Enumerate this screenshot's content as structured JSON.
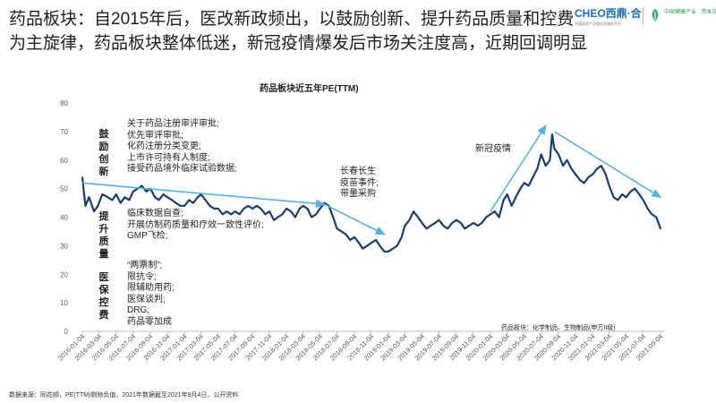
{
  "slide": {
    "title": "药品板块：自2015年后，医改新政频出，以鼓励创新、提升药品质量和控费为主旋律，药品板块整体低迷，新冠疫情爆发后市场关注度高，近期回调明显"
  },
  "logos": {
    "primary": "CHEO西鼎·合",
    "primary_sub": "中国医药产业链信息服务平台",
    "secondary": "中国健康产业 · 资本论坛"
  },
  "chart_data": {
    "type": "line",
    "title": "药品板块近五年PE(TTM)",
    "xlabel": "",
    "ylabel": "",
    "ylim": [
      0,
      80
    ],
    "yticks": [
      0,
      10,
      20,
      30,
      40,
      50,
      60,
      70,
      80
    ],
    "grid": false,
    "x_tick_labels": [
      "2016-01-04",
      "2016-03-04",
      "2016-05-04",
      "2016-07-04",
      "2016-09-04",
      "2016-11-04",
      "2017-01-04",
      "2017-03-04",
      "2017-05-04",
      "2017-07-04",
      "2017-09-04",
      "2017-11-04",
      "2018-01-04",
      "2018-03-04",
      "2018-05-04",
      "2018-07-04",
      "2018-09-04",
      "2018-11-04",
      "2019-01-04",
      "2019-03-04",
      "2019-05-04",
      "2019-07-04",
      "2019-09-04",
      "2019-11-04",
      "2020-01-04",
      "2020-03-04",
      "2020-05-04",
      "2020-07-04",
      "2020-09-04",
      "2020-11-04",
      "2021-01-04",
      "2021-03-04",
      "2021-05-04",
      "2021-07-04",
      "2021-09-04"
    ],
    "series": [
      {
        "color": "#1c3d66",
        "points": [
          [
            "2016-01-04",
            54
          ],
          [
            "2016-01-15",
            44
          ],
          [
            "2016-01-28",
            47
          ],
          [
            "2016-02-15",
            42
          ],
          [
            "2016-02-29",
            44
          ],
          [
            "2016-03-15",
            48
          ],
          [
            "2016-04-04",
            47
          ],
          [
            "2016-04-20",
            46
          ],
          [
            "2016-05-04",
            48
          ],
          [
            "2016-05-20",
            45
          ],
          [
            "2016-06-04",
            47
          ],
          [
            "2016-06-20",
            46
          ],
          [
            "2016-07-04",
            49
          ],
          [
            "2016-07-20",
            50
          ],
          [
            "2016-08-04",
            51
          ],
          [
            "2016-08-20",
            49
          ],
          [
            "2016-09-04",
            50
          ],
          [
            "2016-09-20",
            47
          ],
          [
            "2016-10-04",
            46
          ],
          [
            "2016-10-20",
            48
          ],
          [
            "2016-11-04",
            47
          ],
          [
            "2016-11-20",
            46
          ],
          [
            "2016-12-04",
            45
          ],
          [
            "2016-12-20",
            44
          ],
          [
            "2017-01-04",
            44
          ],
          [
            "2017-01-20",
            46
          ],
          [
            "2017-02-04",
            45
          ],
          [
            "2017-02-20",
            47
          ],
          [
            "2017-03-04",
            48
          ],
          [
            "2017-03-20",
            46
          ],
          [
            "2017-04-04",
            44
          ],
          [
            "2017-04-20",
            43
          ],
          [
            "2017-05-04",
            43
          ],
          [
            "2017-05-20",
            41
          ],
          [
            "2017-06-04",
            42
          ],
          [
            "2017-06-20",
            41
          ],
          [
            "2017-07-04",
            42
          ],
          [
            "2017-07-20",
            41
          ],
          [
            "2017-08-04",
            43
          ],
          [
            "2017-08-20",
            44
          ],
          [
            "2017-09-04",
            43
          ],
          [
            "2017-09-20",
            44
          ],
          [
            "2017-10-04",
            43
          ],
          [
            "2017-10-20",
            41
          ],
          [
            "2017-11-04",
            42
          ],
          [
            "2017-11-20",
            39
          ],
          [
            "2017-12-04",
            40
          ],
          [
            "2017-12-20",
            41
          ],
          [
            "2018-01-04",
            43
          ],
          [
            "2018-01-20",
            42
          ],
          [
            "2018-02-04",
            40
          ],
          [
            "2018-02-20",
            43
          ],
          [
            "2018-03-04",
            44
          ],
          [
            "2018-03-20",
            43
          ],
          [
            "2018-04-04",
            40
          ],
          [
            "2018-04-20",
            41
          ],
          [
            "2018-05-04",
            43
          ],
          [
            "2018-05-20",
            45
          ],
          [
            "2018-06-04",
            44
          ],
          [
            "2018-06-20",
            40
          ],
          [
            "2018-07-04",
            36
          ],
          [
            "2018-07-20",
            35
          ],
          [
            "2018-08-04",
            34
          ],
          [
            "2018-08-20",
            32
          ],
          [
            "2018-09-04",
            33
          ],
          [
            "2018-09-20",
            31
          ],
          [
            "2018-10-04",
            29
          ],
          [
            "2018-10-20",
            30
          ],
          [
            "2018-11-04",
            31
          ],
          [
            "2018-11-20",
            32
          ],
          [
            "2018-12-04",
            30
          ],
          [
            "2018-12-20",
            28
          ],
          [
            "2019-01-04",
            28
          ],
          [
            "2019-01-20",
            29
          ],
          [
            "2019-02-04",
            30
          ],
          [
            "2019-02-20",
            33
          ],
          [
            "2019-03-04",
            37
          ],
          [
            "2019-03-20",
            39
          ],
          [
            "2019-04-04",
            42
          ],
          [
            "2019-04-20",
            40
          ],
          [
            "2019-05-04",
            38
          ],
          [
            "2019-05-20",
            36
          ],
          [
            "2019-06-04",
            37
          ],
          [
            "2019-06-20",
            38
          ],
          [
            "2019-07-04",
            39
          ],
          [
            "2019-07-20",
            37
          ],
          [
            "2019-08-04",
            36
          ],
          [
            "2019-08-20",
            38
          ],
          [
            "2019-09-04",
            39
          ],
          [
            "2019-09-20",
            38
          ],
          [
            "2019-10-04",
            36
          ],
          [
            "2019-10-20",
            37
          ],
          [
            "2019-11-04",
            38
          ],
          [
            "2019-11-20",
            37
          ],
          [
            "2019-12-04",
            38
          ],
          [
            "2019-12-20",
            40
          ],
          [
            "2020-01-04",
            41
          ],
          [
            "2020-01-20",
            42
          ],
          [
            "2020-02-04",
            40
          ],
          [
            "2020-02-20",
            46
          ],
          [
            "2020-03-04",
            48
          ],
          [
            "2020-03-20",
            44
          ],
          [
            "2020-04-04",
            47
          ],
          [
            "2020-04-20",
            50
          ],
          [
            "2020-05-04",
            52
          ],
          [
            "2020-05-20",
            51
          ],
          [
            "2020-06-04",
            54
          ],
          [
            "2020-06-20",
            57
          ],
          [
            "2020-07-04",
            62
          ],
          [
            "2020-07-20",
            58
          ],
          [
            "2020-08-04",
            60
          ],
          [
            "2020-08-12",
            69
          ],
          [
            "2020-08-20",
            64
          ],
          [
            "2020-09-04",
            62
          ],
          [
            "2020-09-20",
            58
          ],
          [
            "2020-10-04",
            60
          ],
          [
            "2020-10-20",
            57
          ],
          [
            "2020-11-04",
            55
          ],
          [
            "2020-11-20",
            53
          ],
          [
            "2020-12-04",
            52
          ],
          [
            "2020-12-20",
            54
          ],
          [
            "2021-01-04",
            55
          ],
          [
            "2021-01-20",
            57
          ],
          [
            "2021-02-04",
            58
          ],
          [
            "2021-02-20",
            55
          ],
          [
            "2021-03-04",
            51
          ],
          [
            "2021-03-20",
            47
          ],
          [
            "2021-04-04",
            46
          ],
          [
            "2021-04-20",
            48
          ],
          [
            "2021-05-04",
            47
          ],
          [
            "2021-05-20",
            49
          ],
          [
            "2021-06-04",
            50
          ],
          [
            "2021-06-20",
            48
          ],
          [
            "2021-07-04",
            46
          ],
          [
            "2021-07-20",
            43
          ],
          [
            "2021-08-04",
            41
          ],
          [
            "2021-08-20",
            40
          ],
          [
            "2021-09-04",
            36
          ]
        ]
      }
    ],
    "trend_arrows": [
      {
        "from": [
          "2016-01-04",
          52
        ],
        "to": [
          "2018-05-20",
          44.5
        ]
      },
      {
        "from": [
          "2018-05-20",
          44.5
        ],
        "to": [
          "2018-12-20",
          34
        ]
      },
      {
        "from": [
          "2020-01-04",
          42
        ],
        "to": [
          "2020-07-20",
          72
        ]
      },
      {
        "from": [
          "2020-08-20",
          70
        ],
        "to": [
          "2021-09-04",
          47
        ]
      }
    ],
    "arrow_color": "#5aaee0",
    "annotations": [
      {
        "label": "鼓励创新",
        "items": [
          "关于药品注册审评审批;",
          "优先审评审批;",
          "化药注册分类变更;",
          "上市许可持有人制度;",
          "接受药品境外临床试验数据;"
        ]
      },
      {
        "label": "提升质量",
        "items": [
          "临床数据自查;",
          "开展仿制药质量和疗效一致性评价;",
          "GMP飞检;"
        ]
      },
      {
        "label": "医保控费",
        "items": [
          "“两票制”;",
          "限抗令;",
          "限辅助用药;",
          "医保谈判;",
          "DRG;",
          "药品零加成"
        ]
      },
      {
        "label": "",
        "items": [
          "长春长生",
          "疫苗事件;",
          "带量采购"
        ]
      },
      {
        "label": "",
        "items": [
          "新冠疫情"
        ]
      }
    ],
    "note": "药品板块：化学制品、生物制品(申万II级)"
  },
  "footnote": "数据来源：同花顺，PE(TTM)剔除负值，2021年数据截至2021年9月4日，公开资料"
}
